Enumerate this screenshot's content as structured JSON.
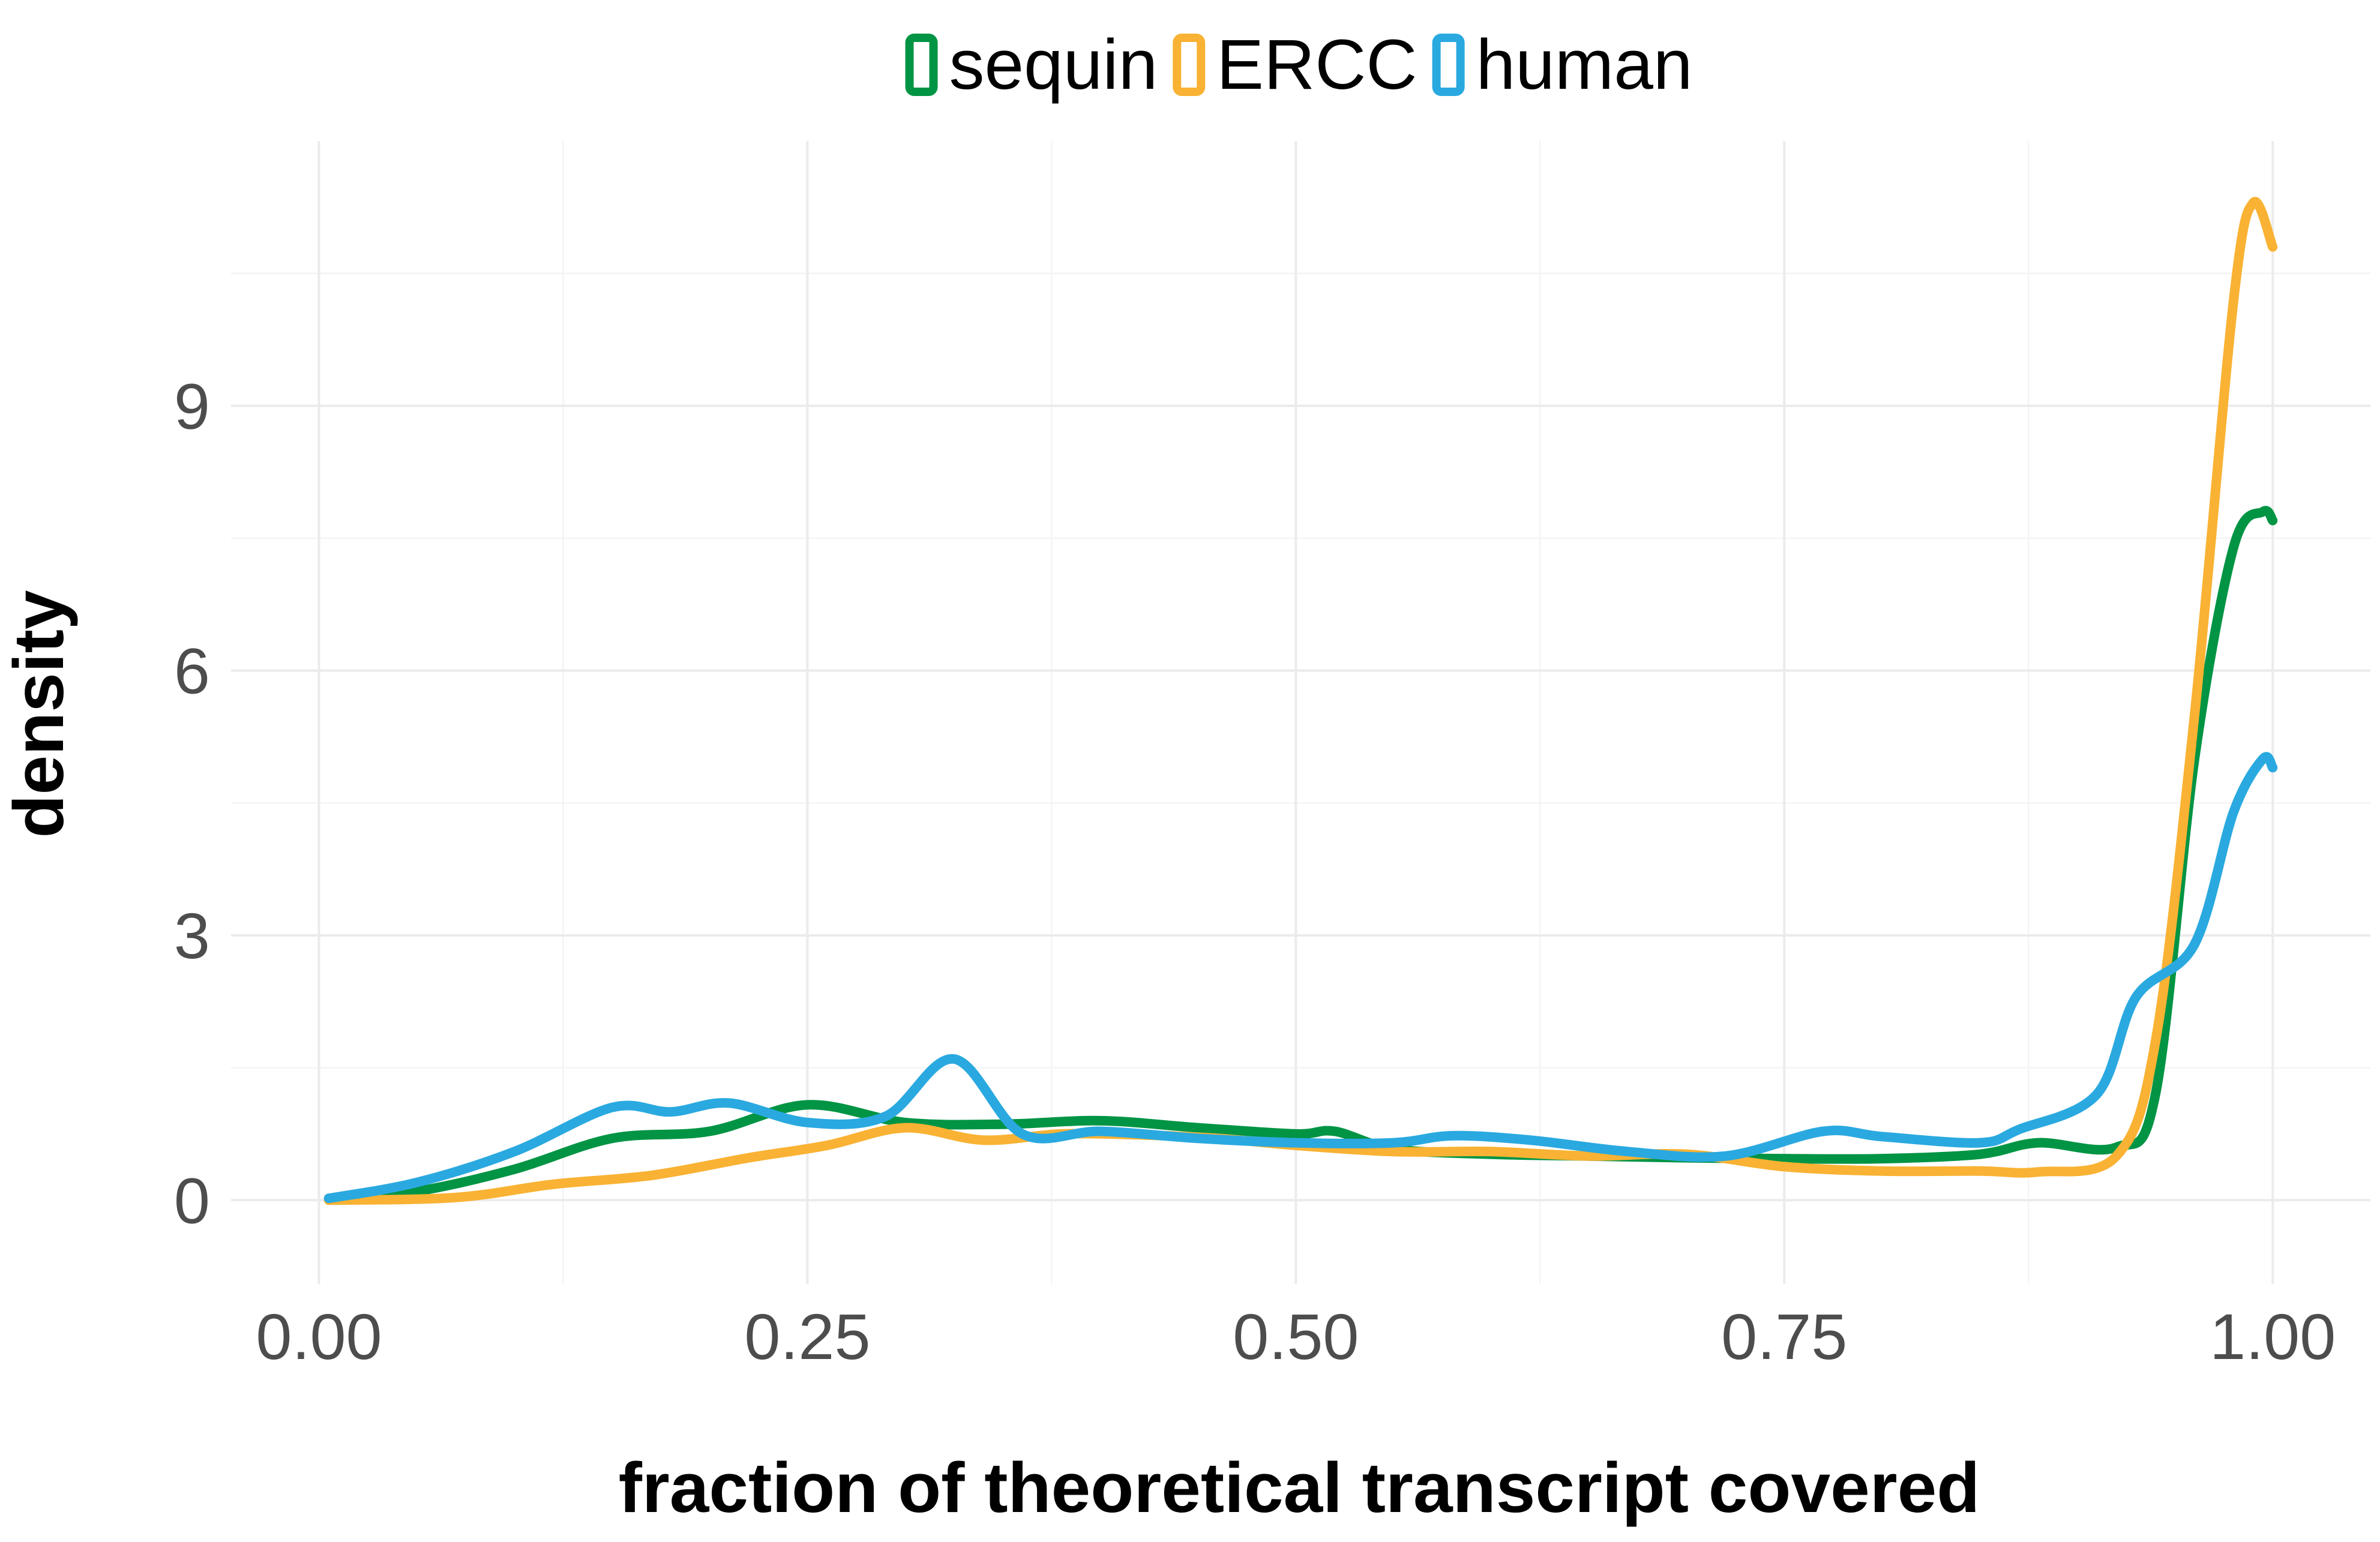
{
  "chart_data": {
    "type": "line",
    "subtype": "density",
    "xlabel": "fraction of theoretical transcript covered",
    "ylabel": "density",
    "xlim": [
      -0.045,
      1.05
    ],
    "ylim": [
      -0.95,
      12.0
    ],
    "x_ticks": [
      0.0,
      0.25,
      0.5,
      0.75,
      1.0
    ],
    "x_tick_labels": [
      "0.00",
      "0.25",
      "0.50",
      "0.75",
      "1.00"
    ],
    "y_ticks": [
      0,
      3,
      6,
      9
    ],
    "y_tick_labels": [
      "0",
      "3",
      "6",
      "9"
    ],
    "grid": true,
    "legend_position": "top",
    "series": [
      {
        "name": "sequin",
        "color": "#009444",
        "points": [
          [
            0.005,
            0.02
          ],
          [
            0.05,
            0.1
          ],
          [
            0.1,
            0.35
          ],
          [
            0.15,
            0.7
          ],
          [
            0.2,
            0.78
          ],
          [
            0.25,
            1.08
          ],
          [
            0.3,
            0.88
          ],
          [
            0.35,
            0.86
          ],
          [
            0.4,
            0.9
          ],
          [
            0.45,
            0.82
          ],
          [
            0.5,
            0.75
          ],
          [
            0.52,
            0.78
          ],
          [
            0.55,
            0.58
          ],
          [
            0.6,
            0.52
          ],
          [
            0.65,
            0.5
          ],
          [
            0.7,
            0.48
          ],
          [
            0.75,
            0.47
          ],
          [
            0.8,
            0.47
          ],
          [
            0.85,
            0.52
          ],
          [
            0.88,
            0.65
          ],
          [
            0.92,
            0.6
          ],
          [
            0.94,
            1.2
          ],
          [
            0.96,
            5.0
          ],
          [
            0.98,
            7.4
          ],
          [
            0.995,
            7.8
          ],
          [
            1.0,
            7.7
          ]
        ]
      },
      {
        "name": "ERCC",
        "color": "#f9b233",
        "points": [
          [
            0.005,
            0.0
          ],
          [
            0.07,
            0.03
          ],
          [
            0.12,
            0.18
          ],
          [
            0.17,
            0.28
          ],
          [
            0.22,
            0.48
          ],
          [
            0.26,
            0.62
          ],
          [
            0.3,
            0.82
          ],
          [
            0.34,
            0.68
          ],
          [
            0.38,
            0.75
          ],
          [
            0.42,
            0.74
          ],
          [
            0.46,
            0.7
          ],
          [
            0.5,
            0.62
          ],
          [
            0.55,
            0.55
          ],
          [
            0.6,
            0.55
          ],
          [
            0.65,
            0.5
          ],
          [
            0.7,
            0.52
          ],
          [
            0.75,
            0.38
          ],
          [
            0.8,
            0.33
          ],
          [
            0.85,
            0.33
          ],
          [
            0.88,
            0.32
          ],
          [
            0.92,
            0.5
          ],
          [
            0.94,
            1.8
          ],
          [
            0.96,
            5.5
          ],
          [
            0.98,
            10.2
          ],
          [
            0.99,
            11.3
          ],
          [
            1.0,
            10.8
          ]
        ]
      },
      {
        "name": "human",
        "color": "#2aa9e0",
        "points": [
          [
            0.005,
            0.02
          ],
          [
            0.05,
            0.2
          ],
          [
            0.1,
            0.55
          ],
          [
            0.15,
            1.05
          ],
          [
            0.18,
            1.0
          ],
          [
            0.21,
            1.1
          ],
          [
            0.25,
            0.88
          ],
          [
            0.29,
            0.95
          ],
          [
            0.325,
            1.6
          ],
          [
            0.36,
            0.75
          ],
          [
            0.4,
            0.78
          ],
          [
            0.45,
            0.7
          ],
          [
            0.5,
            0.65
          ],
          [
            0.55,
            0.65
          ],
          [
            0.58,
            0.73
          ],
          [
            0.62,
            0.68
          ],
          [
            0.67,
            0.55
          ],
          [
            0.72,
            0.5
          ],
          [
            0.77,
            0.78
          ],
          [
            0.8,
            0.72
          ],
          [
            0.85,
            0.65
          ],
          [
            0.87,
            0.8
          ],
          [
            0.91,
            1.2
          ],
          [
            0.93,
            2.3
          ],
          [
            0.96,
            2.9
          ],
          [
            0.98,
            4.4
          ],
          [
            0.995,
            5.0
          ],
          [
            1.0,
            4.9
          ]
        ]
      }
    ]
  }
}
